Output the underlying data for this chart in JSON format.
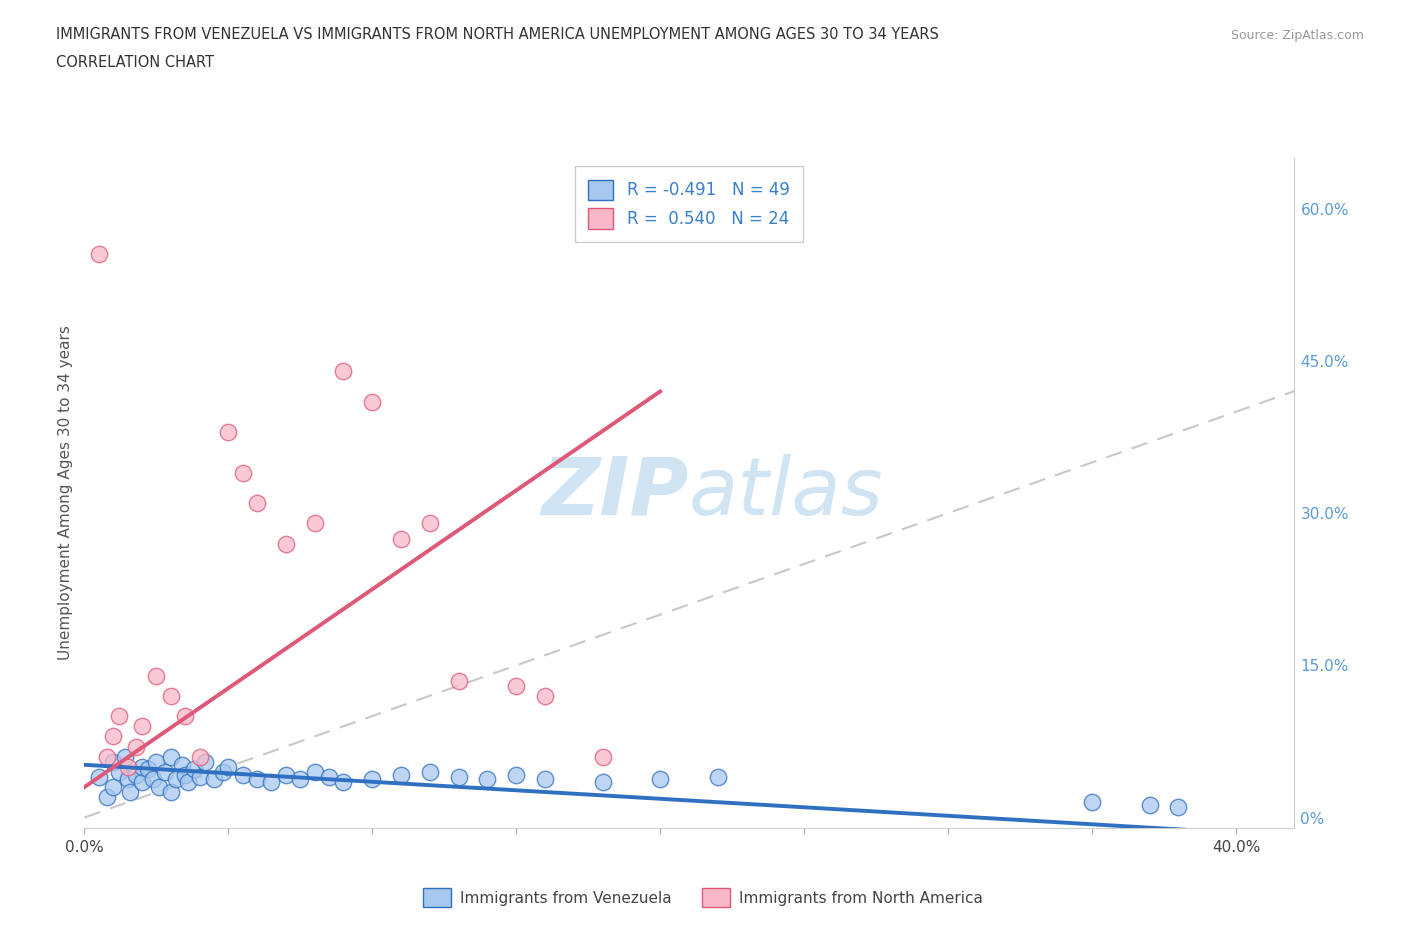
{
  "title_line1": "IMMIGRANTS FROM VENEZUELA VS IMMIGRANTS FROM NORTH AMERICA UNEMPLOYMENT AMONG AGES 30 TO 34 YEARS",
  "title_line2": "CORRELATION CHART",
  "source_text": "Source: ZipAtlas.com",
  "ylabel": "Unemployment Among Ages 30 to 34 years",
  "legend_label_blue": "Immigrants from Venezuela",
  "legend_label_pink": "Immigrants from North America",
  "r_blue": -0.491,
  "n_blue": 49,
  "r_pink": 0.54,
  "n_pink": 24,
  "xlim": [
    0.0,
    0.42
  ],
  "ylim": [
    -0.01,
    0.65
  ],
  "xticks": [
    0.0,
    0.05,
    0.1,
    0.15,
    0.2,
    0.25,
    0.3,
    0.35,
    0.4
  ],
  "yticks": [
    0.0,
    0.15,
    0.3,
    0.45,
    0.6
  ],
  "ytick_labels_right": [
    "0%",
    "15.0%",
    "30.0%",
    "45.0%",
    "60.0%"
  ],
  "color_blue": "#A8C8F0",
  "color_pink": "#F8B8C8",
  "color_blue_line": "#3070C0",
  "color_pink_line": "#E05878",
  "color_diag_line": "#C8C8C8",
  "watermark_color": "#D0E4F4",
  "background_color": "#FFFFFF",
  "grid_color": "#E8E8E8",
  "blue_scatter_x": [
    0.005,
    0.008,
    0.01,
    0.01,
    0.012,
    0.014,
    0.015,
    0.016,
    0.018,
    0.02,
    0.02,
    0.022,
    0.024,
    0.025,
    0.026,
    0.028,
    0.03,
    0.03,
    0.032,
    0.034,
    0.035,
    0.036,
    0.038,
    0.04,
    0.042,
    0.045,
    0.048,
    0.05,
    0.055,
    0.06,
    0.065,
    0.07,
    0.075,
    0.08,
    0.085,
    0.09,
    0.1,
    0.11,
    0.12,
    0.13,
    0.14,
    0.15,
    0.16,
    0.18,
    0.2,
    0.22,
    0.35,
    0.37,
    0.38
  ],
  "blue_scatter_y": [
    0.04,
    0.02,
    0.055,
    0.03,
    0.045,
    0.06,
    0.038,
    0.025,
    0.042,
    0.035,
    0.05,
    0.048,
    0.038,
    0.055,
    0.03,
    0.045,
    0.06,
    0.025,
    0.038,
    0.052,
    0.042,
    0.035,
    0.048,
    0.04,
    0.055,
    0.038,
    0.045,
    0.05,
    0.042,
    0.038,
    0.035,
    0.042,
    0.038,
    0.045,
    0.04,
    0.035,
    0.038,
    0.042,
    0.045,
    0.04,
    0.038,
    0.042,
    0.038,
    0.035,
    0.038,
    0.04,
    0.015,
    0.012,
    0.01
  ],
  "pink_scatter_x": [
    0.005,
    0.008,
    0.01,
    0.012,
    0.015,
    0.018,
    0.02,
    0.025,
    0.03,
    0.035,
    0.04,
    0.05,
    0.055,
    0.06,
    0.07,
    0.08,
    0.09,
    0.1,
    0.11,
    0.12,
    0.13,
    0.15,
    0.16,
    0.18
  ],
  "pink_scatter_y": [
    0.555,
    0.06,
    0.08,
    0.1,
    0.05,
    0.07,
    0.09,
    0.14,
    0.12,
    0.1,
    0.06,
    0.38,
    0.34,
    0.31,
    0.27,
    0.29,
    0.44,
    0.41,
    0.275,
    0.29,
    0.135,
    0.13,
    0.12,
    0.06
  ],
  "blue_trend_x0": 0.0,
  "blue_trend_y0": 0.052,
  "blue_trend_x1": 0.4,
  "blue_trend_y1": -0.015,
  "pink_trend_x0": 0.0,
  "pink_trend_y0": 0.03,
  "pink_trend_x1": 0.2,
  "pink_trend_y1": 0.42
}
